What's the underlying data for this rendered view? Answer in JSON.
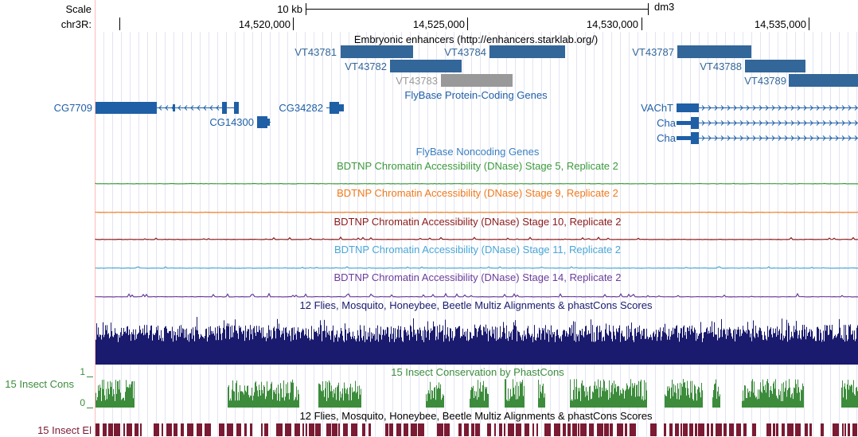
{
  "scale": {
    "label": "Scale",
    "span_label": "10 kb",
    "assembly": "dm3"
  },
  "ruler": {
    "chrom_label": "chr3R:",
    "ticks": [
      "14,520,000",
      "14,525,000",
      "14,530,000",
      "14,535,000"
    ]
  },
  "tracks": {
    "enhancers": {
      "title": "Embryonic enhancers (http://enhancers.starklab.org/)",
      "items": [
        {
          "name": "VT43781",
          "color": "#336699"
        },
        {
          "name": "VT43782",
          "color": "#336699"
        },
        {
          "name": "VT43783",
          "color": "#999999"
        },
        {
          "name": "VT43784",
          "color": "#336699"
        },
        {
          "name": "VT43787",
          "color": "#336699"
        },
        {
          "name": "VT43788",
          "color": "#336699"
        },
        {
          "name": "VT43789",
          "color": "#336699"
        }
      ]
    },
    "protein_genes": {
      "title": "FlyBase Protein-Coding Genes",
      "genes": [
        "CG7709",
        "CG14300",
        "CG34282",
        "VAChT",
        "Cha",
        "Cha"
      ],
      "color": "#1f5fa6"
    },
    "noncoding": {
      "title": "FlyBase Noncoding Genes",
      "color": "#3a7fc0"
    },
    "dnase": [
      {
        "title": "BDTNP Chromatin Accessibility (DNase) Stage 5, Replicate 2",
        "color": "#3c9a3c"
      },
      {
        "title": "BDTNP Chromatin Accessibility (DNase) Stage 9, Replicate 2",
        "color": "#f07a1c"
      },
      {
        "title": "BDTNP Chromatin Accessibility (DNase) Stage 10, Replicate 2",
        "color": "#8b1a1a"
      },
      {
        "title": "BDTNP Chromatin Accessibility (DNase) Stage 11, Replicate 2",
        "color": "#4aa6d6"
      },
      {
        "title": "BDTNP Chromatin Accessibility (DNase) Stage 14, Replicate 2",
        "color": "#6a3d9a"
      }
    ],
    "multiz": {
      "title": "12 Flies, Mosquito, Honeybee, Beetle Multiz Alignments & phastCons Scores",
      "color": "#1a1a6e"
    },
    "phastcons": {
      "title": "15 Insect Conservation by PhastCons",
      "side_label": "15 Insect Cons",
      "ymax": "1",
      "ymin": "0",
      "color": "#3c8c3c"
    },
    "elements": {
      "title": "12 Flies, Mosquito, Honeybee, Beetle Multiz Alignments & phastCons Scores",
      "side_label": "15 Insect El",
      "color": "#7a1a33"
    }
  }
}
